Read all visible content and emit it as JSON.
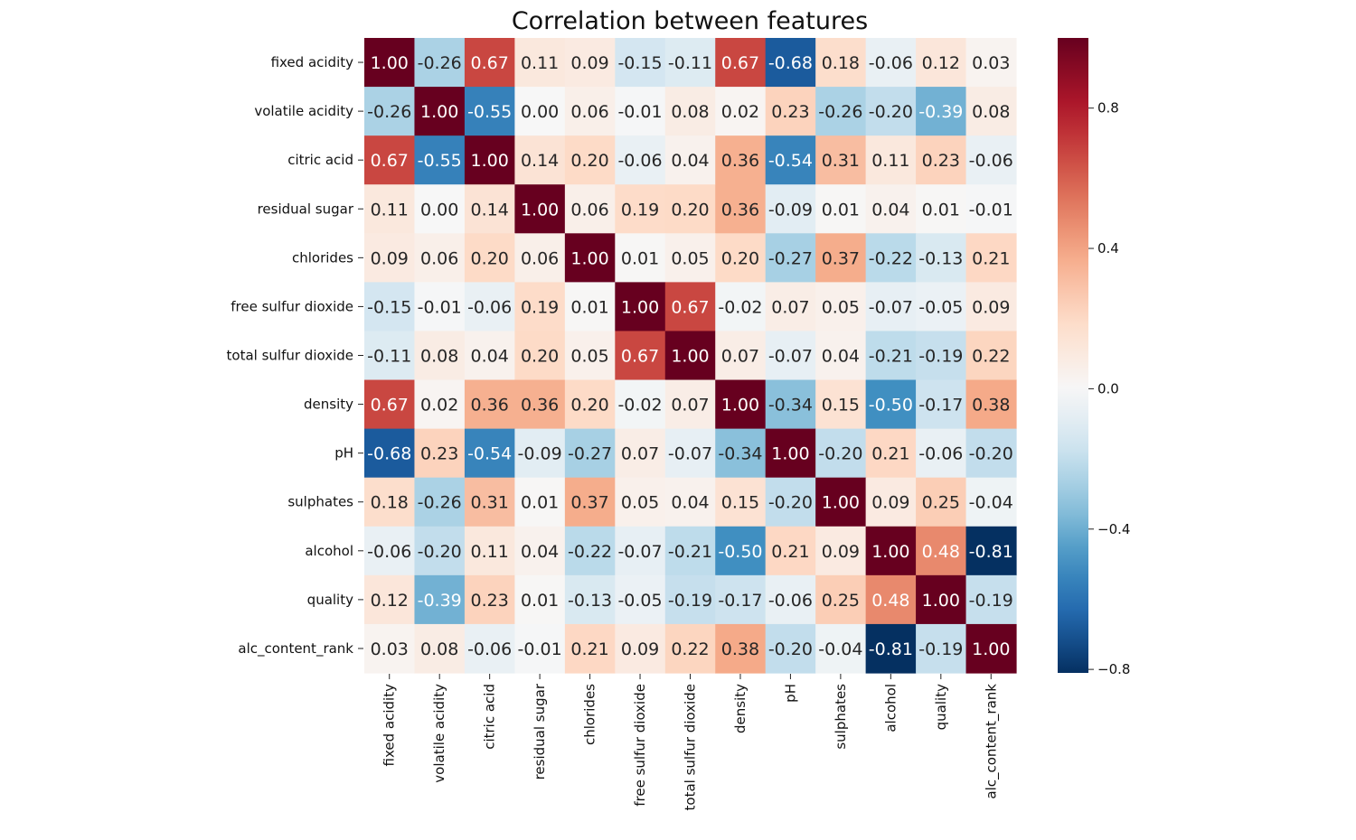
{
  "chart_data": {
    "type": "heatmap",
    "title": "Correlation between features",
    "xlabel": "",
    "ylabel": "",
    "categories": [
      "fixed acidity",
      "volatile acidity",
      "citric acid",
      "residual sugar",
      "chlorides",
      "free sulfur dioxide",
      "total sulfur dioxide",
      "density",
      "pH",
      "sulphates",
      "alcohol",
      "quality",
      "alc_content_rank"
    ],
    "values": [
      [
        1.0,
        -0.26,
        0.67,
        0.11,
        0.09,
        -0.15,
        -0.11,
        0.67,
        -0.68,
        0.18,
        -0.06,
        0.12,
        0.03
      ],
      [
        -0.26,
        1.0,
        -0.55,
        0.0,
        0.06,
        -0.01,
        0.08,
        0.02,
        0.23,
        -0.26,
        -0.2,
        -0.39,
        0.08
      ],
      [
        0.67,
        -0.55,
        1.0,
        0.14,
        0.2,
        -0.06,
        0.04,
        0.36,
        -0.54,
        0.31,
        0.11,
        0.23,
        -0.06
      ],
      [
        0.11,
        0.0,
        0.14,
        1.0,
        0.06,
        0.19,
        0.2,
        0.36,
        -0.09,
        0.01,
        0.04,
        0.01,
        -0.01
      ],
      [
        0.09,
        0.06,
        0.2,
        0.06,
        1.0,
        0.01,
        0.05,
        0.2,
        -0.27,
        0.37,
        -0.22,
        -0.13,
        0.21
      ],
      [
        -0.15,
        -0.01,
        -0.06,
        0.19,
        0.01,
        1.0,
        0.67,
        -0.02,
        0.07,
        0.05,
        -0.07,
        -0.05,
        0.09
      ],
      [
        -0.11,
        0.08,
        0.04,
        0.2,
        0.05,
        0.67,
        1.0,
        0.07,
        -0.07,
        0.04,
        -0.21,
        -0.19,
        0.22
      ],
      [
        0.67,
        0.02,
        0.36,
        0.36,
        0.2,
        -0.02,
        0.07,
        1.0,
        -0.34,
        0.15,
        -0.5,
        -0.17,
        0.38
      ],
      [
        -0.68,
        0.23,
        -0.54,
        -0.09,
        -0.27,
        0.07,
        -0.07,
        -0.34,
        1.0,
        -0.2,
        0.21,
        -0.06,
        -0.2
      ],
      [
        0.18,
        -0.26,
        0.31,
        0.01,
        0.37,
        0.05,
        0.04,
        0.15,
        -0.2,
        1.0,
        0.09,
        0.25,
        -0.04
      ],
      [
        -0.06,
        -0.2,
        0.11,
        0.04,
        -0.22,
        -0.07,
        -0.21,
        -0.5,
        0.21,
        0.09,
        1.0,
        0.48,
        -0.81
      ],
      [
        0.12,
        -0.39,
        0.23,
        0.01,
        -0.13,
        -0.05,
        -0.19,
        -0.17,
        -0.06,
        0.25,
        0.48,
        1.0,
        -0.19
      ],
      [
        0.03,
        0.08,
        -0.06,
        -0.01,
        0.21,
        0.09,
        0.22,
        0.38,
        -0.2,
        -0.04,
        -0.81,
        -0.19,
        1.0
      ]
    ],
    "value_format": "0.00",
    "colormap": "RdBu_r",
    "colormap_stops": [
      "#053061",
      "#2166ac",
      "#4393c3",
      "#92c5de",
      "#d1e5f0",
      "#f7f7f7",
      "#fddbc7",
      "#f4a582",
      "#d6604d",
      "#b2182b",
      "#67001f"
    ],
    "colorbar": {
      "vmin": -0.81,
      "vmax": 1.0,
      "ticks": [
        0.8,
        0.4,
        0.0,
        -0.4,
        -0.8
      ],
      "tick_labels": [
        "0.8",
        "0.4",
        "0.0",
        "−0.4",
        "−0.8"
      ]
    },
    "grid": false,
    "legend": "colorbar-right"
  }
}
